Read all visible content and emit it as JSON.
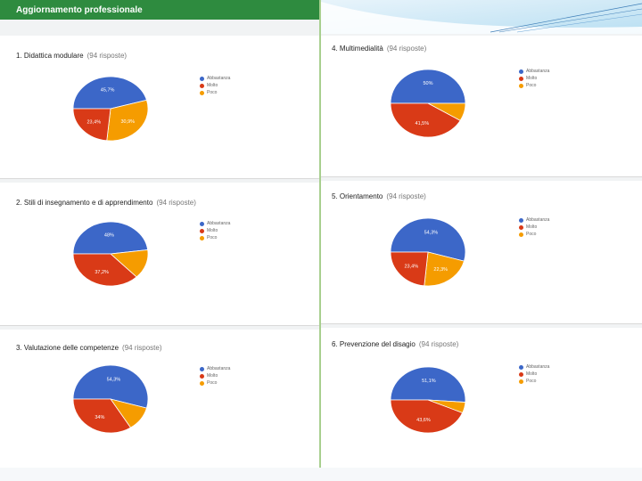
{
  "header": {
    "title": "Aggiornamento professionale"
  },
  "colors": {
    "abbastanza": "#3c67c8",
    "molto": "#d93a17",
    "poco": "#f59c00",
    "header": "#2e8b3f"
  },
  "panels": [
    {
      "title": "1. Didattica modulare",
      "sub": "(94 risposte)",
      "legend": [
        "Abbastanza",
        "Molto",
        "Poco"
      ]
    },
    {
      "title": "2. Stili di insegnamento e di apprendimento",
      "sub": "(94 risposte)",
      "legend": [
        "Abbastanza",
        "Molto",
        "Poco"
      ]
    },
    {
      "title": "3. Valutazione delle competenze",
      "sub": "(94 risposte)",
      "legend": [
        "Abbastanza",
        "Molto",
        "Poco"
      ]
    },
    {
      "title": "4. Multimedialità",
      "sub": "(94 risposte)",
      "legend": [
        "Abbastanza",
        "Molto",
        "Poco"
      ]
    },
    {
      "title": "5. Orientamento",
      "sub": "(94 risposte)",
      "legend": [
        "Abbastanza",
        "Molto",
        "Poco"
      ]
    },
    {
      "title": "6. Prevenzione del disagio",
      "sub": "(94 risposte)",
      "legend": [
        "Abbastanza",
        "Molto",
        "Poco"
      ]
    }
  ],
  "chart_data": [
    {
      "type": "pie",
      "title": "1. Didattica modulare",
      "categories": [
        "Abbastanza",
        "Molto",
        "Poco"
      ],
      "values": [
        45.7,
        23.4,
        30.9
      ],
      "labels": [
        "45,7%",
        "23,4%",
        "30,9%"
      ]
    },
    {
      "type": "pie",
      "title": "2. Stili di insegnamento e di apprendimento",
      "categories": [
        "Abbastanza",
        "Molto",
        "Poco"
      ],
      "values": [
        48,
        37.2,
        14.8
      ],
      "labels": [
        "48%",
        "37,2%",
        ""
      ]
    },
    {
      "type": "pie",
      "title": "3. Valutazione delle competenze",
      "categories": [
        "Abbastanza",
        "Molto",
        "Poco"
      ],
      "values": [
        54.3,
        34,
        11.7
      ],
      "labels": [
        "54,3%",
        "34%",
        ""
      ]
    },
    {
      "type": "pie",
      "title": "4. Multimedialità",
      "categories": [
        "Abbastanza",
        "Molto",
        "Poco"
      ],
      "values": [
        50,
        41.5,
        8.5
      ],
      "labels": [
        "50%",
        "41,5%",
        ""
      ]
    },
    {
      "type": "pie",
      "title": "5. Orientamento",
      "categories": [
        "Abbastanza",
        "Molto",
        "Poco"
      ],
      "values": [
        54.3,
        23.4,
        22.3
      ],
      "labels": [
        "54,3%",
        "23,4%",
        "22,3%"
      ]
    },
    {
      "type": "pie",
      "title": "6. Prevenzione del disagio",
      "categories": [
        "Abbastanza",
        "Molto",
        "Poco"
      ],
      "values": [
        51.1,
        43.6,
        5.3
      ],
      "labels": [
        "51,1%",
        "43,6%",
        ""
      ]
    }
  ]
}
